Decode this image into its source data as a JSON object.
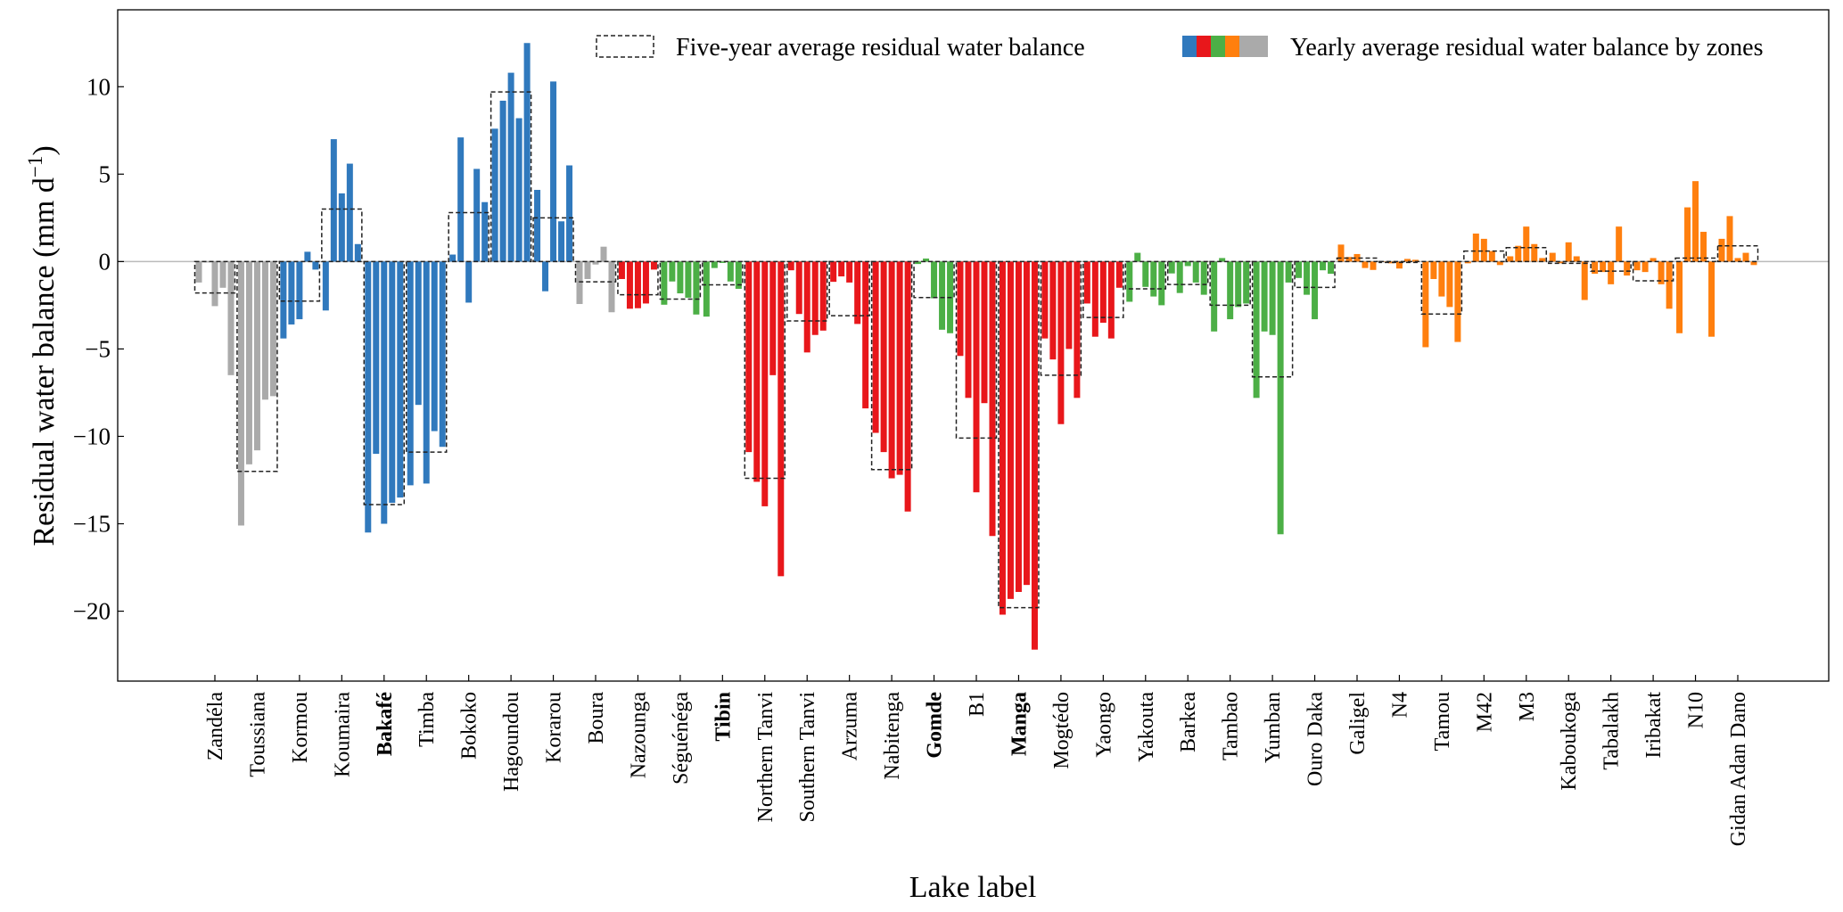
{
  "chart_data": {
    "type": "bar",
    "xlabel": "Lake label",
    "ylabel": "Residual water balance (mm d",
    "ylabel_superscript": "−1",
    "ylabel_close": ")",
    "ylim": [
      -24.0,
      14.4
    ],
    "yticks": [
      10,
      5,
      0,
      -5,
      -10,
      -15,
      -20
    ],
    "ytick_labels": [
      "10",
      "5",
      "0",
      "−5",
      "−10",
      "−15",
      "−20"
    ],
    "grid": false,
    "legend_placement": "top-right",
    "legend": {
      "average": "Five-year average residual water balance",
      "yearly": "Yearly average residual water balance by zones"
    },
    "zone_colors": {
      "gray": "#aaaaaa",
      "blue": "#3079bd",
      "red": "#e8171b",
      "green": "#4caf46",
      "orange": "#ff7f0e"
    },
    "lakes": [
      {
        "name": "Zandéla",
        "zone": "gray",
        "bold": false,
        "yearly": [
          -1.2,
          -0.05,
          -2.55,
          -1.5,
          -6.5
        ],
        "average": -1.8
      },
      {
        "name": "Toussiana",
        "zone": "gray",
        "bold": false,
        "yearly": [
          -15.1,
          -11.6,
          -10.8,
          -7.9,
          -7.7
        ],
        "average": -12.0
      },
      {
        "name": "Kormou",
        "zone": "blue",
        "bold": false,
        "yearly": [
          -4.4,
          -3.6,
          -3.3,
          0.56,
          -0.46
        ],
        "average": -2.26
      },
      {
        "name": "Koumaira",
        "zone": "blue",
        "bold": false,
        "yearly": [
          -2.8,
          7.0,
          3.9,
          5.6,
          1.0
        ],
        "average": 3.0
      },
      {
        "name": "Bakafé",
        "zone": "blue",
        "bold": true,
        "yearly": [
          -15.5,
          -11.0,
          -15.0,
          -13.8,
          -13.5
        ],
        "average": -13.9
      },
      {
        "name": "Timba",
        "zone": "blue",
        "bold": false,
        "yearly": [
          -12.8,
          -8.2,
          -12.7,
          -9.7,
          -10.6
        ],
        "average": -10.9
      },
      {
        "name": "Bokoko",
        "zone": "blue",
        "bold": false,
        "yearly": [
          0.4,
          7.1,
          -2.35,
          5.3,
          3.4
        ],
        "average": 2.8
      },
      {
        "name": "Hagoundou",
        "zone": "blue",
        "bold": false,
        "yearly": [
          7.6,
          9.2,
          10.8,
          8.2,
          12.5
        ],
        "average": 9.7
      },
      {
        "name": "Korarou",
        "zone": "blue",
        "bold": false,
        "yearly": [
          4.1,
          -1.7,
          10.3,
          2.3,
          5.5
        ],
        "average": 2.5
      },
      {
        "name": "Boura",
        "zone": "gray",
        "bold": false,
        "yearly": [
          -2.43,
          -1.0,
          -0.17,
          0.85,
          -2.9
        ],
        "average": -1.16
      },
      {
        "name": "Nazounga",
        "zone": "red",
        "bold": false,
        "yearly": [
          -1.0,
          -2.7,
          -2.67,
          -2.4,
          -0.46
        ],
        "average": -1.9
      },
      {
        "name": "Séguénéga",
        "zone": "green",
        "bold": false,
        "yearly": [
          -2.47,
          -1.14,
          -1.82,
          -2.07,
          -3.03
        ],
        "average": -2.15
      },
      {
        "name": "Tibin",
        "zone": "green",
        "bold": true,
        "yearly": [
          -3.15,
          -0.37,
          -0.08,
          -1.14,
          -1.56
        ],
        "average": -1.33
      },
      {
        "name": "Northern Tanvi",
        "zone": "red",
        "bold": false,
        "yearly": [
          -10.9,
          -12.6,
          -14.0,
          -6.5,
          -18.0
        ],
        "average": -12.4
      },
      {
        "name": "Southern Tanvi",
        "zone": "red",
        "bold": false,
        "yearly": [
          -0.5,
          -3.0,
          -5.2,
          -4.2,
          -3.95
        ],
        "average": -3.4
      },
      {
        "name": "Arzuma",
        "zone": "red",
        "bold": false,
        "yearly": [
          -1.16,
          -0.85,
          -1.2,
          -3.57,
          -8.4
        ],
        "average": -3.1
      },
      {
        "name": "Nabitenga",
        "zone": "red",
        "bold": false,
        "yearly": [
          -9.8,
          -10.9,
          -12.4,
          -12.2,
          -14.3
        ],
        "average": -11.9
      },
      {
        "name": "Gomde",
        "zone": "green",
        "bold": true,
        "yearly": [
          -0.14,
          0.17,
          -2.1,
          -3.9,
          -4.1
        ],
        "average": -2.06
      },
      {
        "name": "B1",
        "zone": "red",
        "bold": false,
        "yearly": [
          -5.4,
          -7.8,
          -13.2,
          -8.1,
          -15.7
        ],
        "average": -10.1
      },
      {
        "name": "Manga",
        "zone": "red",
        "bold": true,
        "yearly": [
          -20.2,
          -19.3,
          -18.9,
          -18.5,
          -22.2
        ],
        "average": -19.8
      },
      {
        "name": "Mogtédo",
        "zone": "red",
        "bold": false,
        "yearly": [
          -4.4,
          -5.6,
          -9.3,
          -5.0,
          -7.8
        ],
        "average": -6.5
      },
      {
        "name": "Yaongo",
        "zone": "red",
        "bold": false,
        "yearly": [
          -2.4,
          -4.3,
          -3.5,
          -4.4,
          -1.5
        ],
        "average": -3.2
      },
      {
        "name": "Yakouta",
        "zone": "green",
        "bold": false,
        "yearly": [
          -2.3,
          0.5,
          -1.45,
          -2.0,
          -2.5
        ],
        "average": -1.56
      },
      {
        "name": "Barkea",
        "zone": "green",
        "bold": false,
        "yearly": [
          -0.68,
          -1.8,
          -0.26,
          -1.2,
          -1.9
        ],
        "average": -1.31
      },
      {
        "name": "Tambao",
        "zone": "green",
        "bold": false,
        "yearly": [
          -4.0,
          0.2,
          -3.3,
          -2.6,
          -2.4
        ],
        "average": -2.5
      },
      {
        "name": "Yumban",
        "zone": "green",
        "bold": false,
        "yearly": [
          -7.8,
          -4.0,
          -4.2,
          -15.6,
          -1.2
        ],
        "average": -6.6
      },
      {
        "name": "Ouro Daka",
        "zone": "green",
        "bold": false,
        "yearly": [
          -0.94,
          -1.9,
          -3.3,
          -0.5,
          -0.7
        ],
        "average": -1.48
      },
      {
        "name": "Galigel",
        "zone": "orange",
        "bold": false,
        "yearly": [
          0.97,
          0.26,
          0.43,
          -0.37,
          -0.48
        ],
        "average": 0.2
      },
      {
        "name": "N4",
        "zone": "orange",
        "bold": false,
        "yearly": [
          0.0,
          -0.1,
          -0.4,
          0.15,
          0.1
        ],
        "average": 0.0
      },
      {
        "name": "Tamou",
        "zone": "orange",
        "bold": false,
        "yearly": [
          -4.9,
          -1.0,
          -2.0,
          -2.6,
          -4.6
        ],
        "average": -3.0
      },
      {
        "name": "M42",
        "zone": "orange",
        "bold": false,
        "yearly": [
          -0.1,
          1.6,
          1.3,
          0.6,
          -0.2
        ],
        "average": 0.6
      },
      {
        "name": "M3",
        "zone": "orange",
        "bold": false,
        "yearly": [
          0.3,
          0.9,
          2.0,
          1.0,
          0.2
        ],
        "average": 0.8
      },
      {
        "name": "Kaboukoga",
        "zone": "orange",
        "bold": false,
        "yearly": [
          0.5,
          -0.1,
          1.1,
          0.3,
          -2.2
        ],
        "average": -0.1
      },
      {
        "name": "Tabalakh",
        "zone": "orange",
        "bold": false,
        "yearly": [
          -0.7,
          -0.6,
          -1.3,
          2.0,
          -0.8
        ],
        "average": -0.55
      },
      {
        "name": "Iribakat",
        "zone": "orange",
        "bold": false,
        "yearly": [
          -0.5,
          -0.6,
          0.2,
          -1.3,
          -2.7
        ],
        "average": -1.1
      },
      {
        "name": "N10",
        "zone": "orange",
        "bold": false,
        "yearly": [
          -4.1,
          3.1,
          4.6,
          1.7,
          -4.3
        ],
        "average": 0.2
      },
      {
        "name": "Gidan Adan Dano",
        "zone": "orange",
        "bold": false,
        "yearly": [
          1.3,
          2.6,
          0.2,
          0.5,
          -0.2
        ],
        "average": 0.9
      }
    ]
  }
}
